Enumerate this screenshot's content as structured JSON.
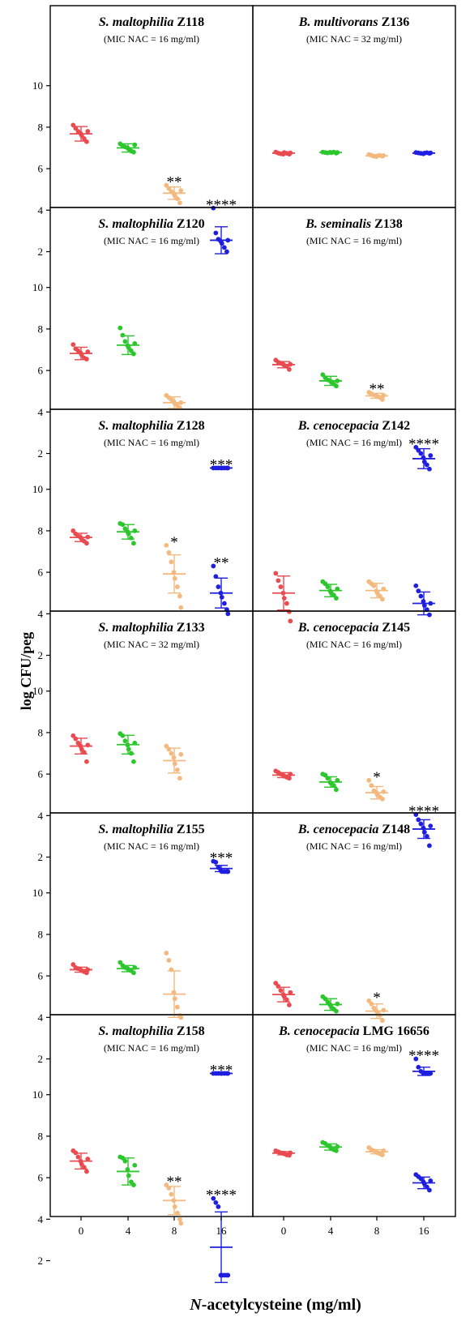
{
  "figure": {
    "ylabel": "log CFU/peg",
    "xlabel_italic": "N",
    "xlabel_rest": "-acetylcysteine (mg/ml)"
  },
  "chart_data": {
    "type": "scatter",
    "x_categories": [
      "0",
      "4",
      "8",
      "16"
    ],
    "ylim": [
      1.2,
      11.2
    ],
    "y_ticks": [
      2,
      4,
      6,
      8,
      10
    ],
    "colors": [
      "#e94b50",
      "#2cc72c",
      "#f3b97f",
      "#1f1fe0"
    ],
    "panels": [
      {
        "title_italic": "S. maltophilia",
        "title_plain": " Z118",
        "subtitle": "(MIC NAC = 16 mg/ml)",
        "groups": [
          {
            "mean": 7.68,
            "sd": 0.35,
            "points": [
              8.1,
              7.95,
              7.8,
              7.7,
              7.6,
              7.45,
              7.3,
              7.8
            ],
            "stars": ""
          },
          {
            "mean": 7.0,
            "sd": 0.2,
            "points": [
              7.2,
              7.1,
              7.05,
              7.0,
              6.95,
              6.85,
              6.8,
              7.15
            ],
            "stars": ""
          },
          {
            "mean": 4.82,
            "sd": 0.3,
            "points": [
              5.2,
              5.05,
              4.9,
              4.8,
              4.7,
              4.55,
              4.35,
              4.95
            ],
            "stars": "**"
          },
          {
            "mean": 2.55,
            "sd": 0.65,
            "points": [
              4.1,
              2.9,
              2.6,
              2.5,
              2.4,
              2.2,
              2.0,
              2.55
            ],
            "stars": "****"
          }
        ]
      },
      {
        "title_italic": "B. multivorans",
        "title_plain": " Z136",
        "subtitle": "(MIC NAC = 32  mg/ml)",
        "groups": [
          {
            "mean": 6.75,
            "sd": 0.05,
            "points": [
              6.8,
              6.75,
              6.72,
              6.7,
              6.78,
              6.74,
              6.7,
              6.76
            ],
            "stars": ""
          },
          {
            "mean": 6.78,
            "sd": 0.04,
            "points": [
              6.8,
              6.78,
              6.76,
              6.79,
              6.77,
              6.8,
              6.75,
              6.78
            ],
            "stars": ""
          },
          {
            "mean": 6.62,
            "sd": 0.06,
            "points": [
              6.68,
              6.65,
              6.6,
              6.58,
              6.62,
              6.64,
              6.6,
              6.63
            ],
            "stars": ""
          },
          {
            "mean": 6.75,
            "sd": 0.04,
            "points": [
              6.78,
              6.76,
              6.74,
              6.72,
              6.75,
              6.77,
              6.74,
              6.76
            ],
            "stars": ""
          }
        ]
      },
      {
        "title_italic": "S. maltophilia",
        "title_plain": " Z120",
        "subtitle": "(MIC NAC = 16 mg/ml)",
        "groups": [
          {
            "mean": 6.82,
            "sd": 0.3,
            "points": [
              7.25,
              7.05,
              6.95,
              6.85,
              6.75,
              6.6,
              6.55,
              6.9
            ],
            "stars": ""
          },
          {
            "mean": 7.22,
            "sd": 0.45,
            "points": [
              8.05,
              7.7,
              7.4,
              7.2,
              7.1,
              6.95,
              6.8,
              7.3
            ],
            "stars": ""
          },
          {
            "mean": 4.45,
            "sd": 0.28,
            "points": [
              4.8,
              4.7,
              4.6,
              4.5,
              4.4,
              4.3,
              4.2,
              4.45
            ],
            "stars": ""
          },
          {
            "mean": 1.3,
            "sd": 0.0,
            "points": [
              1.3,
              1.3,
              1.3,
              1.3,
              1.3,
              1.3,
              1.3,
              1.3
            ],
            "stars": "***"
          }
        ]
      },
      {
        "title_italic": "B. seminalis",
        "title_plain": " Z138",
        "subtitle": "(MIC NAC = 16  mg/ml)",
        "groups": [
          {
            "mean": 6.28,
            "sd": 0.15,
            "points": [
              6.5,
              6.4,
              6.35,
              6.3,
              6.25,
              6.2,
              6.05,
              6.3
            ],
            "stars": ""
          },
          {
            "mean": 5.5,
            "sd": 0.22,
            "points": [
              5.8,
              5.65,
              5.55,
              5.5,
              5.45,
              5.35,
              5.25,
              5.5
            ],
            "stars": ""
          },
          {
            "mean": 4.78,
            "sd": 0.12,
            "points": [
              4.95,
              4.88,
              4.82,
              4.78,
              4.74,
              4.7,
              4.6,
              4.8
            ],
            "stars": "**"
          },
          {
            "mean": 1.75,
            "sd": 0.48,
            "points": [
              2.3,
              2.15,
              2.0,
              1.8,
              1.6,
              1.45,
              1.25,
              1.9
            ],
            "stars": "****"
          }
        ]
      },
      {
        "title_italic": "S. maltophilia",
        "title_plain": " Z128",
        "subtitle": "(MIC NAC = 16 mg/ml)",
        "groups": [
          {
            "mean": 7.68,
            "sd": 0.2,
            "points": [
              8.0,
              7.85,
              7.75,
              7.68,
              7.6,
              7.5,
              7.4,
              7.7
            ],
            "stars": ""
          },
          {
            "mean": 7.95,
            "sd": 0.35,
            "points": [
              8.35,
              8.3,
              8.1,
              7.95,
              7.85,
              7.65,
              7.4,
              8.0
            ],
            "stars": ""
          },
          {
            "mean": 5.92,
            "sd": 0.92,
            "points": [
              7.3,
              6.95,
              6.5,
              6.0,
              5.7,
              5.3,
              4.85,
              4.3
            ],
            "stars": "*"
          },
          {
            "mean": 5.0,
            "sd": 0.72,
            "points": [
              6.3,
              5.8,
              5.3,
              5.0,
              4.8,
              4.5,
              4.2,
              4.0
            ],
            "stars": "**"
          }
        ]
      },
      {
        "title_italic": "B. cenocepacia",
        "title_plain": " Z142",
        "subtitle": "(MIC NAC = 16  mg/ml)",
        "groups": [
          {
            "mean": 5.0,
            "sd": 0.82,
            "points": [
              5.95,
              5.6,
              5.3,
              5.0,
              4.75,
              4.5,
              4.1,
              3.65
            ],
            "stars": ""
          },
          {
            "mean": 5.12,
            "sd": 0.3,
            "points": [
              5.55,
              5.45,
              5.3,
              5.1,
              5.0,
              4.9,
              4.75,
              5.2
            ],
            "stars": ""
          },
          {
            "mean": 5.12,
            "sd": 0.35,
            "points": [
              5.55,
              5.45,
              5.35,
              5.1,
              5.0,
              4.85,
              4.7,
              5.2
            ],
            "stars": ""
          },
          {
            "mean": 4.5,
            "sd": 0.55,
            "points": [
              5.35,
              5.1,
              4.85,
              4.6,
              4.4,
              4.2,
              3.95,
              4.5
            ],
            "stars": ""
          }
        ]
      },
      {
        "title_italic": "S. maltophilia",
        "title_plain": " Z133",
        "subtitle": "(MIC NAC = 32 mg/ml)",
        "groups": [
          {
            "mean": 7.35,
            "sd": 0.38,
            "points": [
              7.85,
              7.7,
              7.5,
              7.35,
              7.2,
              7.05,
              6.6,
              7.4
            ],
            "stars": ""
          },
          {
            "mean": 7.42,
            "sd": 0.45,
            "points": [
              7.95,
              7.85,
              7.6,
              7.4,
              7.2,
              7.0,
              6.6,
              7.5
            ],
            "stars": ""
          },
          {
            "mean": 6.65,
            "sd": 0.6,
            "points": [
              7.35,
              7.2,
              7.0,
              6.8,
              6.5,
              6.2,
              5.8,
              6.95
            ],
            "stars": ""
          },
          {
            "mean": 1.45,
            "sd": 0.15,
            "points": [
              1.8,
              1.75,
              1.5,
              1.35,
              1.3,
              1.3,
              1.3,
              1.3
            ],
            "stars": "***"
          }
        ]
      },
      {
        "title_italic": "B. cenocepacia",
        "title_plain": " Z145",
        "subtitle": "(MIC NAC = 16  mg/ml)",
        "groups": [
          {
            "mean": 5.95,
            "sd": 0.12,
            "points": [
              6.15,
              6.08,
              6.0,
              5.95,
              5.9,
              5.85,
              5.8,
              6.0
            ],
            "stars": ""
          },
          {
            "mean": 5.62,
            "sd": 0.25,
            "points": [
              6.0,
              5.95,
              5.8,
              5.6,
              5.55,
              5.45,
              5.25,
              5.7
            ],
            "stars": ""
          },
          {
            "mean": 5.1,
            "sd": 0.3,
            "points": [
              5.7,
              5.45,
              5.2,
              5.1,
              5.0,
              4.9,
              4.8,
              5.15
            ],
            "stars": "*"
          },
          {
            "mean": 3.35,
            "sd": 0.45,
            "points": [
              4.05,
              3.8,
              3.6,
              3.4,
              3.2,
              3.0,
              2.55,
              3.5
            ],
            "stars": "****"
          }
        ]
      },
      {
        "title_italic": "S. maltophilia",
        "title_plain": " Z155",
        "subtitle": "(MIC NAC = 16  mg/ml)",
        "groups": [
          {
            "mean": 6.3,
            "sd": 0.12,
            "points": [
              6.55,
              6.4,
              6.35,
              6.3,
              6.25,
              6.2,
              6.15,
              6.3
            ],
            "stars": ""
          },
          {
            "mean": 6.35,
            "sd": 0.15,
            "points": [
              6.65,
              6.5,
              6.4,
              6.35,
              6.3,
              6.25,
              6.15,
              6.4
            ],
            "stars": ""
          },
          {
            "mean": 5.12,
            "sd": 1.12,
            "points": [
              7.1,
              6.75,
              6.3,
              5.2,
              4.9,
              4.5,
              4.1,
              4.0
            ],
            "stars": ""
          },
          {
            "mean": 1.3,
            "sd": 0.0,
            "points": [
              1.3,
              1.3,
              1.3,
              1.3,
              1.3,
              1.3,
              1.3,
              1.3
            ],
            "stars": "***"
          }
        ]
      },
      {
        "title_italic": "B. cenocepacia",
        "title_plain": " Z148",
        "subtitle": "(MIC NAC = 16  mg/ml)",
        "groups": [
          {
            "mean": 5.1,
            "sd": 0.35,
            "points": [
              5.65,
              5.5,
              5.3,
              5.1,
              5.0,
              4.85,
              4.6,
              5.2
            ],
            "stars": ""
          },
          {
            "mean": 4.62,
            "sd": 0.28,
            "points": [
              5.0,
              4.9,
              4.75,
              4.6,
              4.5,
              4.4,
              4.3,
              4.65
            ],
            "stars": ""
          },
          {
            "mean": 4.3,
            "sd": 0.35,
            "points": [
              4.8,
              4.65,
              4.45,
              4.3,
              4.25,
              4.1,
              3.85,
              4.35
            ],
            "stars": "*"
          },
          {
            "mean": 1.4,
            "sd": 0.2,
            "points": [
              2.0,
              1.6,
              1.4,
              1.3,
              1.3,
              1.3,
              1.3,
              1.3
            ],
            "stars": "****"
          }
        ]
      },
      {
        "title_italic": "S. maltophilia",
        "title_plain": " Z158",
        "subtitle": "(MIC NAC = 16  mg/ml)",
        "groups": [
          {
            "mean": 6.8,
            "sd": 0.38,
            "points": [
              7.3,
              7.2,
              7.0,
              6.8,
              6.65,
              6.5,
              6.3,
              6.9
            ],
            "stars": ""
          },
          {
            "mean": 6.3,
            "sd": 0.65,
            "points": [
              7.0,
              6.95,
              6.8,
              6.4,
              6.1,
              5.8,
              5.65,
              6.6
            ],
            "stars": ""
          },
          {
            "mean": 4.9,
            "sd": 0.68,
            "points": [
              5.65,
              5.5,
              5.2,
              4.9,
              4.6,
              4.3,
              4.0,
              3.8
            ],
            "stars": "**"
          },
          {
            "mean": 2.65,
            "sd": 1.7,
            "points": [
              5.0,
              4.8,
              4.6,
              1.3,
              1.3,
              1.3,
              1.3,
              1.3
            ],
            "stars": "****"
          }
        ]
      },
      {
        "title_italic": "B. cenocepacia",
        "title_plain": " LMG 16656",
        "subtitle": "(MIC NAC = 16  mg/ml)",
        "groups": [
          {
            "mean": 7.18,
            "sd": 0.08,
            "points": [
              7.3,
              7.25,
              7.2,
              7.18,
              7.15,
              7.1,
              7.08,
              7.2
            ],
            "stars": ""
          },
          {
            "mean": 7.48,
            "sd": 0.15,
            "points": [
              7.7,
              7.65,
              7.55,
              7.48,
              7.4,
              7.35,
              7.3,
              7.5
            ],
            "stars": ""
          },
          {
            "mean": 7.25,
            "sd": 0.1,
            "points": [
              7.45,
              7.35,
              7.3,
              7.25,
              7.2,
              7.15,
              7.1,
              7.3
            ],
            "stars": ""
          },
          {
            "mean": 5.75,
            "sd": 0.28,
            "points": [
              6.15,
              6.05,
              5.95,
              5.8,
              5.7,
              5.55,
              5.4,
              5.85
            ],
            "stars": ""
          }
        ]
      }
    ]
  }
}
